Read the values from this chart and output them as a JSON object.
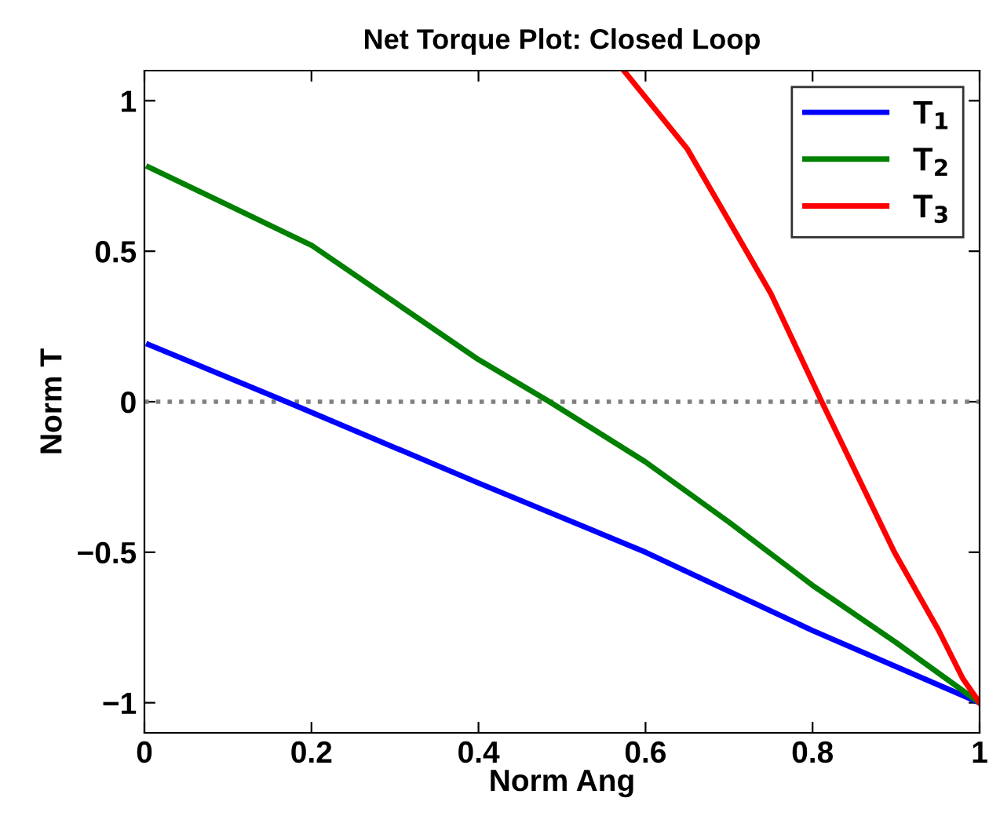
{
  "chart_data": {
    "type": "line",
    "title": "Net Torque Plot: Closed Loop",
    "xlabel": "Norm Ang",
    "ylabel": "Norm T",
    "xlim": [
      0,
      1
    ],
    "ylim": [
      -1.1,
      1.1
    ],
    "xticks": [
      0,
      0.2,
      0.4,
      0.6,
      0.8,
      1
    ],
    "yticks": [
      -1,
      -0.5,
      0,
      0.5,
      1
    ],
    "grid": false,
    "legend": "top right",
    "line_style": "solid",
    "marker": "none",
    "ref_lines": [
      {
        "axis": "y",
        "value": 0,
        "color": "#808080",
        "line_style": "dotted"
      }
    ],
    "series": [
      {
        "name": "T$_{1}$",
        "color": "#0000ff",
        "x": [
          0.005,
          0.17,
          0.4,
          0.6,
          0.8,
          1
        ],
        "values": [
          0.19,
          0,
          -0.27,
          -0.5,
          -0.76,
          -1
        ]
      },
      {
        "name": "T$_{2}$",
        "color": "#008000",
        "x": [
          0.005,
          0.2,
          0.4,
          0.485,
          0.6,
          0.7,
          0.8,
          0.9,
          1
        ],
        "values": [
          0.78,
          0.52,
          0.14,
          0,
          -0.2,
          -0.4,
          -0.61,
          -0.8,
          -1
        ]
      },
      {
        "name": "T$_{3}$",
        "color": "#ff0000",
        "x": [
          0.574,
          0.65,
          0.7,
          0.75,
          0.811,
          0.898,
          0.951,
          0.98,
          1
        ],
        "values": [
          1.1,
          0.84,
          0.6,
          0.36,
          0,
          -0.5,
          -0.76,
          -0.92,
          -1
        ]
      }
    ]
  }
}
